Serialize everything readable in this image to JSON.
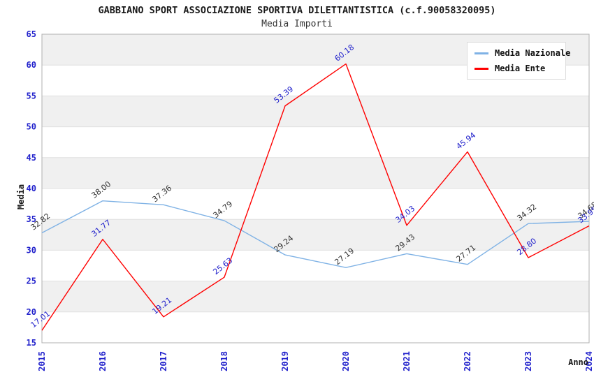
{
  "header": {
    "title": "GABBIANO SPORT ASSOCIAZIONE SPORTIVA DILETTANTISTICA (c.f.90058320095)",
    "subtitle": "Media Importi"
  },
  "legend": {
    "items": [
      {
        "label": "Media Nazionale",
        "color": "#7fb2e5"
      },
      {
        "label": "Media Ente",
        "color": "#ff0000"
      }
    ]
  },
  "chart_data": {
    "type": "line",
    "x": [
      "2015",
      "2016",
      "2017",
      "2018",
      "2019",
      "2020",
      "2021",
      "2022",
      "2023",
      "2024"
    ],
    "series": [
      {
        "name": "Media Nazionale",
        "color": "#7fb2e5",
        "label_color": "#333333",
        "values": [
          32.82,
          38.0,
          37.36,
          34.79,
          29.24,
          27.19,
          29.43,
          27.71,
          34.32,
          34.68
        ]
      },
      {
        "name": "Media Ente",
        "color": "#ff0000",
        "label_color": "#2222cc",
        "values": [
          17.01,
          31.77,
          19.21,
          25.63,
          53.39,
          60.18,
          34.03,
          45.94,
          28.8,
          33.95
        ]
      }
    ],
    "xlabel": "Anno",
    "ylabel": "Media",
    "ylim": [
      15,
      65
    ],
    "ytick_step": 5,
    "yticks": [
      15,
      20,
      25,
      30,
      35,
      40,
      45,
      50,
      55,
      60,
      65
    ],
    "grid": "horizontal-bands",
    "legend_position": "top-right",
    "colors": {
      "tick_label": "#2222cc",
      "band": "#f0f0f0",
      "gridline": "#e0e0e0",
      "plot_border": "#b0b0b0"
    }
  }
}
